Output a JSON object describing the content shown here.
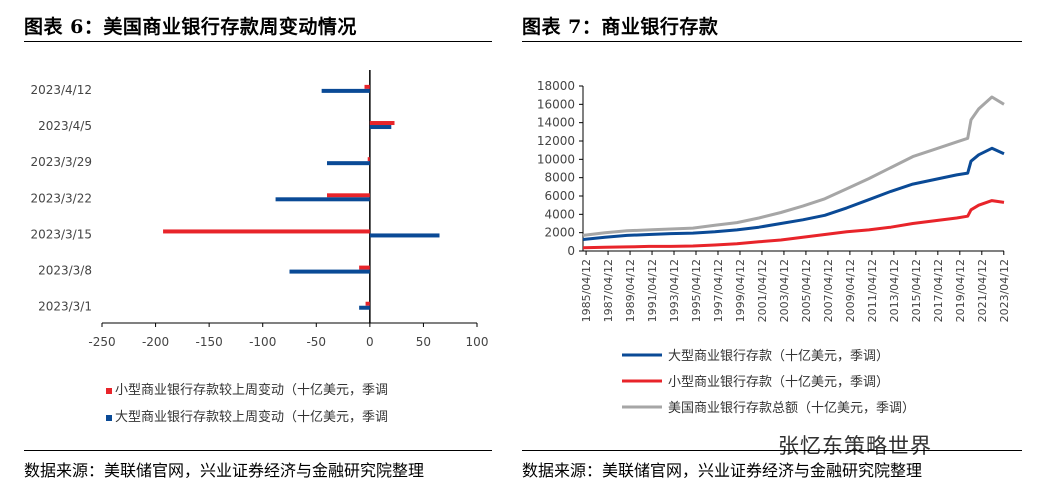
{
  "left": {
    "title": "图表 6：美国商业银行存款周变动情况",
    "source": "数据来源：美联储官网，兴业证券经济与金融研究院整理"
  },
  "right": {
    "title": "图表 7：商业银行存款",
    "source": "数据来源：美联储官网，兴业证券经济与金融研究院整理"
  },
  "watermark": "张忆东策略世界",
  "colors": {
    "red": "#e8242a",
    "blue": "#0a4a96",
    "gray": "#a6a6a6"
  },
  "chart_data": [
    {
      "type": "bar",
      "orientation": "horizontal",
      "categories": [
        "2023/4/12",
        "2023/4/5",
        "2023/3/29",
        "2023/3/22",
        "2023/3/15",
        "2023/3/8",
        "2023/3/1"
      ],
      "series": [
        {
          "name": "小型商业银行存款较上周变动（十亿美元，季调",
          "color": "#e8242a",
          "values": [
            -5,
            23,
            -2,
            -40,
            -193,
            -10,
            -4
          ]
        },
        {
          "name": "大型商业银行存款较上周变动（十亿美元，季调",
          "color": "#0a4a96",
          "values": [
            -45,
            20,
            -40,
            -88,
            65,
            -75,
            -10
          ]
        }
      ],
      "xlim": [
        -250,
        100
      ],
      "xticks": [
        "-250",
        "-200",
        "-150",
        "-100",
        "-50",
        "0",
        "50",
        "100"
      ],
      "legend": "bottom"
    },
    {
      "type": "line",
      "x_ticks": [
        "1985/04/12",
        "1987/04/12",
        "1989/04/12",
        "1991/04/12",
        "1993/04/12",
        "1995/04/12",
        "1997/04/12",
        "1999/04/12",
        "2001/04/12",
        "2003/04/12",
        "2005/04/12",
        "2007/04/12",
        "2009/04/12",
        "2011/04/12",
        "2013/04/12",
        "2015/04/12",
        "2017/04/12",
        "2019/04/12",
        "2021/04/12",
        "2023/04/12"
      ],
      "x_years": [
        1985,
        1987,
        1989,
        1991,
        1993,
        1995,
        1997,
        1999,
        2001,
        2003,
        2005,
        2007,
        2009,
        2011,
        2013,
        2015,
        2017,
        2019,
        2020,
        2020.3,
        2021,
        2022.2,
        2023.3
      ],
      "series": [
        {
          "name": "大型商业银行存款（十亿美元，季调）",
          "color": "#0a4a96",
          "values": [
            1250,
            1500,
            1700,
            1800,
            1900,
            1950,
            2100,
            2300,
            2600,
            3000,
            3400,
            3900,
            4700,
            5600,
            6500,
            7300,
            7800,
            8300,
            8500,
            9800,
            10500,
            11200,
            10600
          ]
        },
        {
          "name": "小型商业银行存款（十亿美元，季调）",
          "color": "#e8242a",
          "values": [
            350,
            400,
            450,
            500,
            500,
            550,
            650,
            800,
            1000,
            1200,
            1500,
            1800,
            2100,
            2300,
            2600,
            3000,
            3300,
            3600,
            3800,
            4500,
            5000,
            5500,
            5300
          ]
        },
        {
          "name": "美国商业银行存款总额（十亿美元，季调）",
          "color": "#a6a6a6",
          "values": [
            1700,
            2000,
            2200,
            2300,
            2400,
            2500,
            2800,
            3100,
            3600,
            4200,
            4900,
            5700,
            6800,
            7900,
            9100,
            10300,
            11100,
            11900,
            12300,
            14300,
            15500,
            16800,
            16000
          ]
        }
      ],
      "ylim": [
        0,
        18000
      ],
      "yticks": [
        "0",
        "2000",
        "4000",
        "6000",
        "8000",
        "10000",
        "12000",
        "14000",
        "16000",
        "18000"
      ],
      "legend": "bottom"
    }
  ]
}
